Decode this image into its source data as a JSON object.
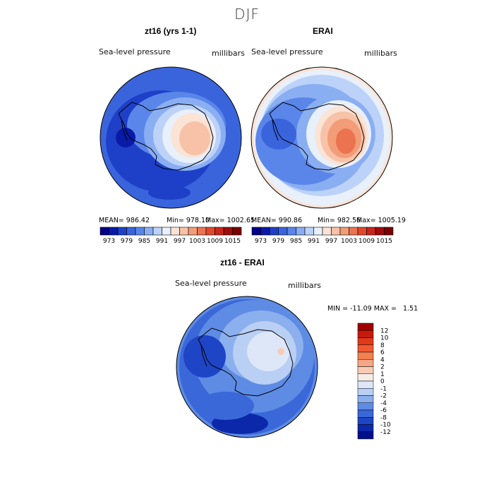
{
  "title": "DJF",
  "panels": [
    {
      "title": "zt16 (yrs 1-1)",
      "variable": "Sea-level pressure",
      "units": "millibars",
      "stats_mean": "MEAN= 986.42",
      "stats_min": "Min= 978.10",
      "stats_max": "Max= 1002.65"
    },
    {
      "title": "ERAI",
      "variable": "Sea-level pressure",
      "units": "millibars",
      "stats_mean": "MEAN= 990.86",
      "stats_min": "Min= 982.56",
      "stats_max": "Max= 1005.19"
    }
  ],
  "diff_panel": {
    "title": "zt16 - ERAI",
    "variable": "Sea-level pressure",
    "units": "millibars",
    "minmax": "MIN = -11.09 MAX =   1.51"
  },
  "chart_data": [
    {
      "type": "heatmap",
      "projection": "polar stereographic (south pole)",
      "title": "zt16 (yrs 1-1)",
      "variable": "Sea-level pressure",
      "units": "millibars",
      "mean": 986.42,
      "min": 978.1,
      "max": 1002.65,
      "colorbar_ticks": [
        "973",
        "979",
        "985",
        "991",
        "997",
        "1003",
        "1009",
        "1015"
      ],
      "colorbar_colors": [
        "#00008b",
        "#0a1aa8",
        "#1e40c8",
        "#3a64dc",
        "#5a86ea",
        "#8aaef2",
        "#bcd2f8",
        "#e8f0fb",
        "#fbe3d6",
        "#f7c2a8",
        "#f29c78",
        "#eb7350",
        "#e2482c",
        "#c8261a",
        "#9e0c0c",
        "#7a0000"
      ]
    },
    {
      "type": "heatmap",
      "projection": "polar stereographic (south pole)",
      "title": "ERAI",
      "variable": "Sea-level pressure",
      "units": "millibars",
      "mean": 990.86,
      "min": 982.56,
      "max": 1005.19,
      "colorbar_ticks": [
        "973",
        "979",
        "985",
        "991",
        "997",
        "1003",
        "1009",
        "1015"
      ],
      "colorbar_colors": [
        "#00008b",
        "#0a1aa8",
        "#1e40c8",
        "#3a64dc",
        "#5a86ea",
        "#8aaef2",
        "#bcd2f8",
        "#e8f0fb",
        "#fbe3d6",
        "#f7c2a8",
        "#f29c78",
        "#eb7350",
        "#e2482c",
        "#c8261a",
        "#9e0c0c",
        "#7a0000"
      ]
    },
    {
      "type": "heatmap",
      "projection": "polar stereographic (south pole)",
      "title": "zt16 - ERAI",
      "variable": "Sea-level pressure",
      "units": "millibars",
      "min": -11.09,
      "max": 1.51,
      "colorbar_ticks": [
        "12",
        "10",
        "8",
        "6",
        "4",
        "2",
        "1",
        "0",
        "-1",
        "-2",
        "-4",
        "-6",
        "-8",
        "-10",
        "-12"
      ],
      "colorbar_colors": [
        "#9e0000",
        "#c81a0a",
        "#e03a1a",
        "#f05a32",
        "#f48050",
        "#f6a684",
        "#f9cbb6",
        "#f6ece6",
        "#dde7f7",
        "#b9cff4",
        "#8cb0ee",
        "#5e8be4",
        "#3a68d8",
        "#1e45c6",
        "#0c28aa",
        "#00108a"
      ]
    }
  ]
}
